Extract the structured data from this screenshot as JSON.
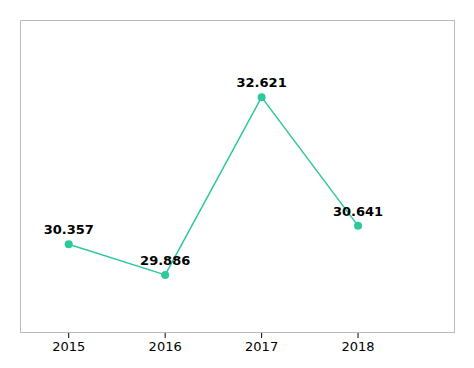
{
  "chart_data": {
    "type": "line",
    "x": [
      2015,
      2016,
      2017,
      2018
    ],
    "values": [
      30.357,
      29.886,
      32.621,
      30.641
    ],
    "color": "#2dc89e",
    "marker": "circle",
    "xlim": [
      2014.5,
      2019.0
    ],
    "xticks": [
      2015,
      2016,
      2017,
      2018
    ],
    "ylim": [
      29.0,
      33.8
    ],
    "data_labels": true,
    "tick_labels": "x"
  }
}
